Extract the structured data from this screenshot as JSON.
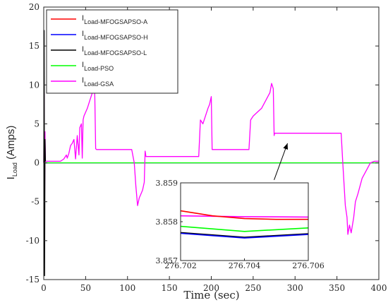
{
  "chart_data": {
    "type": "line",
    "title": "",
    "xlabel": "Time (sec)",
    "ylabel": "I",
    "ylabel_sub": "Load",
    "ylabel_unit": " (Amps)",
    "xlim": [
      0,
      400
    ],
    "ylim": [
      -15,
      20
    ],
    "xticks": [
      0,
      50,
      100,
      150,
      200,
      250,
      300,
      350,
      400
    ],
    "yticks": [
      -15,
      -10,
      -5,
      0,
      5,
      10,
      15,
      20
    ],
    "grid": false,
    "legend_position": "top-left",
    "series": [
      {
        "name": "I",
        "name_sub": "Load-MFOGSAPSO-A",
        "color": "#ff0000",
        "x": [
          0,
          400
        ],
        "y": [
          0,
          0
        ]
      },
      {
        "name": "I",
        "name_sub": "Load-MFOGSAPSO-H",
        "color": "#0000ff",
        "x": [
          0,
          400
        ],
        "y": [
          0,
          0
        ]
      },
      {
        "name": "I",
        "name_sub": "Load-MFOGSAPSO-L",
        "color": "#000000",
        "x": [
          0,
          0.5,
          1,
          1.5,
          2
        ],
        "y": [
          0,
          17,
          -14.5,
          3,
          0.2
        ]
      },
      {
        "name": "I",
        "name_sub": "Load-PSO",
        "color": "#00ff00",
        "x": [
          0,
          400
        ],
        "y": [
          0,
          0
        ]
      },
      {
        "name": "I",
        "name_sub": "Load-GSA",
        "color": "#ff00ff",
        "x": [
          0,
          0.5,
          1,
          1.5,
          2,
          3,
          20,
          24,
          27,
          28,
          30,
          32,
          34,
          36,
          38,
          40,
          42,
          43,
          45,
          46,
          47,
          48,
          50,
          52,
          55,
          58,
          60,
          61,
          62,
          63,
          64,
          70,
          80,
          90,
          105,
          108,
          110,
          112,
          114,
          116,
          118,
          120,
          121,
          122,
          130,
          150,
          170,
          185,
          187,
          190,
          193,
          196,
          198,
          200,
          201,
          202,
          220,
          245,
          247,
          250,
          255,
          260,
          265,
          270,
          272,
          274,
          275,
          275.5,
          276,
          277,
          300,
          330,
          355,
          357,
          360,
          362,
          363,
          365,
          367,
          370,
          372,
          375,
          380,
          385,
          390,
          395,
          400
        ],
        "y": [
          0,
          9,
          -7,
          4,
          0.2,
          0.2,
          0.2,
          0.5,
          1,
          0.6,
          1.2,
          2.2,
          2.5,
          3,
          0.5,
          3.5,
          1,
          4.5,
          5,
          0.6,
          5.5,
          6,
          6.5,
          7,
          8,
          9,
          10,
          8.5,
          1.8,
          1.7,
          1.7,
          1.7,
          1.7,
          1.7,
          1.7,
          0,
          -3,
          -5.5,
          -4.5,
          -4,
          -3.5,
          -2.5,
          1.5,
          0.8,
          0.8,
          0.8,
          0.8,
          0.8,
          5.5,
          5,
          6,
          7,
          7.5,
          8.5,
          1.7,
          1.7,
          1.7,
          1.7,
          5.5,
          6,
          6.5,
          7,
          8,
          9,
          10.2,
          9.5,
          3.5,
          3.8,
          3.8,
          3.8,
          3.8,
          3.8,
          3.8,
          0,
          -5.5,
          -7,
          -9.2,
          -8,
          -9,
          -7,
          -5,
          -4,
          -2,
          -1,
          0,
          0.2,
          0.2
        ]
      }
    ],
    "inset": {
      "xlim": [
        276.702,
        276.706
      ],
      "ylim": [
        3.857,
        3.859
      ],
      "xticks": [
        "276.702",
        "276.704",
        "276.706"
      ],
      "yticks": [
        "3.857",
        "3.858",
        "3.859"
      ],
      "series": [
        {
          "name": "GSA",
          "color": "#ff00ff",
          "x": [
            276.702,
            276.704,
            276.706
          ],
          "y": [
            3.85815,
            3.85813,
            3.85812
          ]
        },
        {
          "name": "MFOGSAPSO-A",
          "color": "#ff0000",
          "x": [
            276.702,
            276.703,
            276.704,
            276.705,
            276.706
          ],
          "y": [
            3.85828,
            3.85815,
            3.85808,
            3.85806,
            3.85806
          ]
        },
        {
          "name": "PSO",
          "color": "#00ff00",
          "x": [
            276.702,
            276.704,
            276.706
          ],
          "y": [
            3.85788,
            3.85775,
            3.85784
          ]
        },
        {
          "name": "MFOGSAPSO-L",
          "color": "#000000",
          "x": [
            276.702,
            276.704,
            276.706
          ],
          "y": [
            3.85772,
            3.8576,
            3.85769
          ]
        },
        {
          "name": "MFOGSAPSO-H",
          "color": "#0000ff",
          "x": [
            276.702,
            276.704,
            276.706
          ],
          "y": [
            3.8577,
            3.85758,
            3.85767
          ]
        }
      ]
    },
    "arrow": {
      "from": [
        275,
        -2.2
      ],
      "to": [
        291,
        2.5
      ]
    }
  }
}
